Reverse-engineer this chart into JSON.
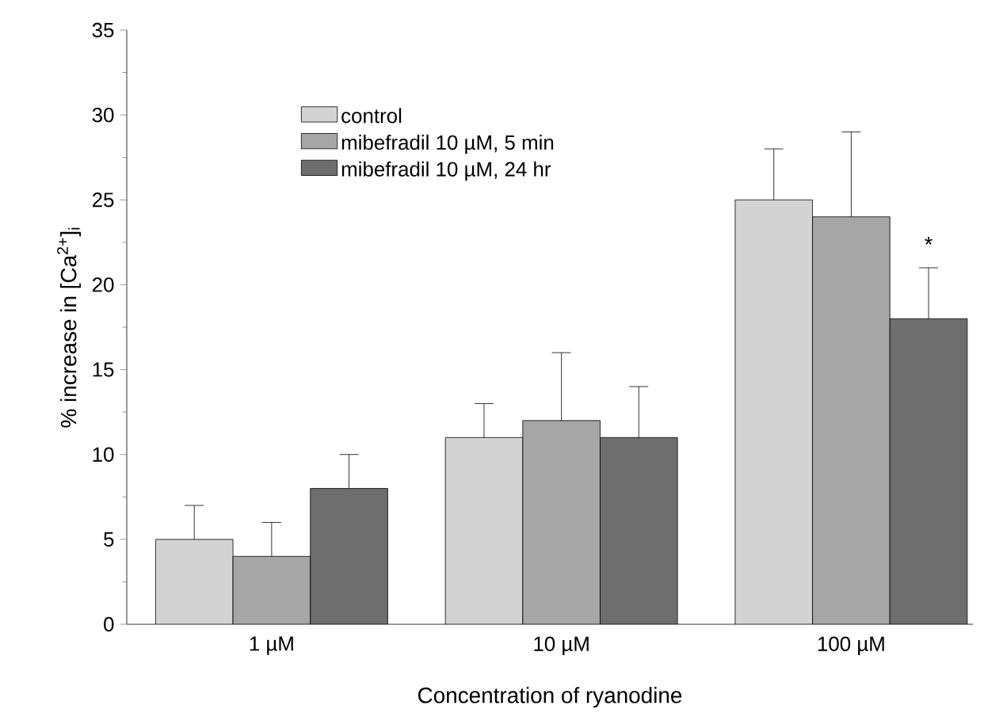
{
  "chart_data": {
    "type": "bar",
    "xlabel": "Concentration of ryanodine",
    "ylabel": "% increase in [Ca$^{2+}$]$_{i}$",
    "categories": [
      "1 µM",
      "10 µM",
      "100 µM"
    ],
    "series": [
      {
        "name": "control",
        "color": "#d3d3d3",
        "values": [
          5,
          11,
          25
        ],
        "errors": [
          [
            5,
            7
          ],
          [
            11,
            13
          ],
          [
            25,
            28
          ]
        ]
      },
      {
        "name": "mibefradil 10 µM, 5 min",
        "color": "#a6a6a6",
        "values": [
          4,
          12,
          24
        ],
        "errors": [
          [
            4,
            6
          ],
          [
            12,
            16
          ],
          [
            24,
            29
          ]
        ]
      },
      {
        "name": "mibefradil 10 µM, 24 hr",
        "color": "#6e6e6e",
        "values": [
          8,
          11,
          18
        ],
        "errors": [
          [
            8,
            10
          ],
          [
            11,
            14
          ],
          [
            18,
            21
          ]
        ]
      }
    ],
    "ylim": [
      0,
      35
    ],
    "yticks": [
      0,
      5,
      10,
      15,
      20,
      25,
      30,
      35
    ],
    "annotations": [
      "*"
    ],
    "legend": "top left",
    "grid": false
  }
}
